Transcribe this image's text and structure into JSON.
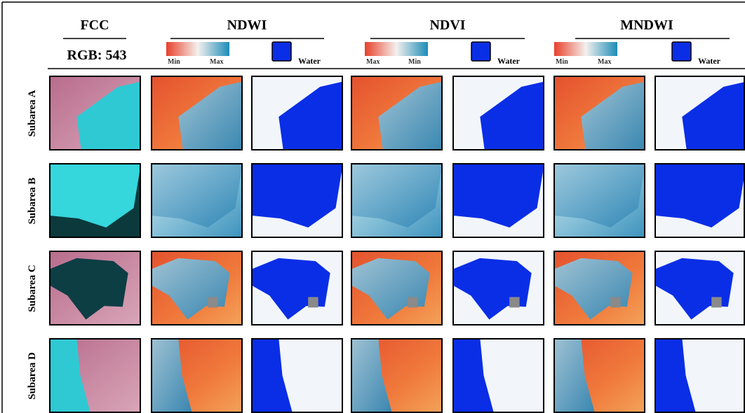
{
  "header": {
    "columns": [
      {
        "title": "FCC",
        "subtitle": "RGB: 543"
      },
      {
        "title": "NDWI",
        "legend": {
          "left": "Min",
          "right": "Max"
        },
        "mask_legend": "Water"
      },
      {
        "title": "NDVI",
        "legend": {
          "left": "Max",
          "right": "Min"
        },
        "mask_legend": "Water"
      },
      {
        "title": "MNDWI",
        "legend": {
          "left": "Min",
          "right": "Max"
        },
        "mask_legend": "Water"
      }
    ]
  },
  "rows": [
    "Subarea A",
    "Subarea B",
    "Subarea C",
    "Subarea D"
  ]
}
